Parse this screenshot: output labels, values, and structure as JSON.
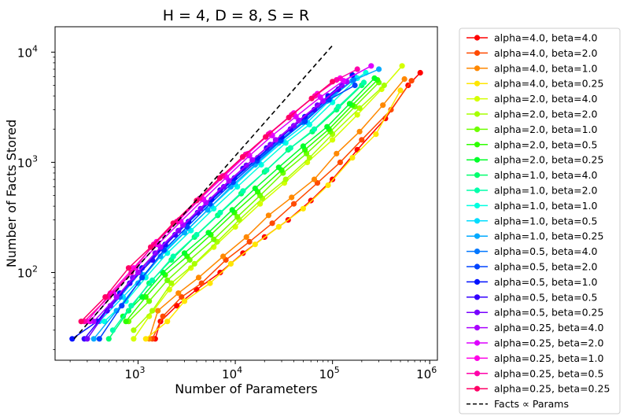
{
  "chart_data": {
    "type": "line",
    "title": "H = 4, D = 8, S = R",
    "xlabel": "Number of Parameters",
    "ylabel": "Number of Facts Stored",
    "xscale": "log",
    "yscale": "log",
    "xlim": [
      140,
      1200000
    ],
    "ylim": [
      16,
      17000
    ],
    "x_ticks": [
      {
        "value": 1000,
        "base": "10",
        "exp": "3"
      },
      {
        "value": 10000,
        "base": "10",
        "exp": "4"
      },
      {
        "value": 100000,
        "base": "10",
        "exp": "5"
      },
      {
        "value": 1000000,
        "base": "10",
        "exp": "6"
      }
    ],
    "y_ticks": [
      {
        "value": 100,
        "base": "10",
        "exp": "2"
      },
      {
        "value": 1000,
        "base": "10",
        "exp": "3"
      },
      {
        "value": 10000,
        "base": "10",
        "exp": "4"
      }
    ],
    "legend_position": "outside-right",
    "reference_line": {
      "name": "Facts ∝ Params",
      "color": "#000000",
      "style": "dashed",
      "x": [
        220,
        100000
      ],
      "y": [
        25,
        11500
      ]
    },
    "series": [
      {
        "name": "alpha=4.0, beta=4.0",
        "color": "#ff0000",
        "x": [
          1500,
          1700,
          2500,
          4000,
          7000,
          12000,
          20000,
          35000,
          60000,
          100000,
          180000,
          350000,
          600000,
          800000
        ],
        "y": [
          25,
          36,
          50,
          70,
          100,
          150,
          210,
          300,
          450,
          700,
          1300,
          2500,
          5000,
          6500
        ]
      },
      {
        "name": "alpha=4.0, beta=2.0",
        "color": "#ff4a00",
        "x": [
          1400,
          1800,
          2800,
          4500,
          8000,
          14000,
          24000,
          40000,
          70000,
          120000,
          200000,
          400000,
          650000
        ],
        "y": [
          25,
          40,
          60,
          80,
          130,
          190,
          280,
          420,
          650,
          1000,
          1600,
          3000,
          5500
        ]
      },
      {
        "name": "alpha=4.0, beta=1.0",
        "color": "#ff8800",
        "x": [
          1300,
          1600,
          2600,
          4200,
          7500,
          13000,
          22000,
          38000,
          65000,
          110000,
          190000,
          330000,
          550000
        ],
        "y": [
          25,
          45,
          65,
          90,
          140,
          210,
          330,
          480,
          700,
          1200,
          1900,
          3300,
          5700
        ]
      },
      {
        "name": "alpha=4.0, beta=0.25",
        "color": "#ffe600",
        "x": [
          1200,
          2000,
          3000,
          5500,
          9000,
          16000,
          28000,
          50000,
          90000,
          160000,
          280000,
          500000
        ],
        "y": [
          25,
          36,
          55,
          80,
          120,
          180,
          260,
          380,
          620,
          1100,
          1800,
          4500
        ]
      },
      {
        "name": "alpha=2.0, beta=4.0",
        "color": "#d4ff00",
        "x": [
          900,
          1300,
          2100,
          3500,
          6000,
          10000,
          18000,
          32000,
          55000,
          100000,
          180000,
          320000,
          520000
        ],
        "y": [
          25,
          40,
          70,
          110,
          170,
          260,
          420,
          650,
          1000,
          1600,
          2700,
          4600,
          7500
        ]
      },
      {
        "name": "alpha=2.0, beta=2.0",
        "color": "#a6ff00",
        "x": [
          900,
          1400,
          2200,
          3800,
          6500,
          11000,
          19000,
          33000,
          58000,
          100000,
          190000,
          340000
        ],
        "y": [
          30,
          45,
          80,
          120,
          190,
          300,
          470,
          700,
          1100,
          1800,
          3100,
          5000
        ]
      },
      {
        "name": "alpha=2.0, beta=1.0",
        "color": "#6eff00",
        "x": [
          800,
          1300,
          2000,
          3400,
          6000,
          10500,
          18000,
          31000,
          54000,
          95000,
          170000,
          300000
        ],
        "y": [
          36,
          55,
          85,
          130,
          200,
          320,
          500,
          800,
          1200,
          1900,
          3200,
          5300
        ]
      },
      {
        "name": "alpha=2.0, beta=0.5",
        "color": "#2eff00",
        "x": [
          750,
          1200,
          1900,
          3200,
          5600,
          9800,
          17000,
          30000,
          52000,
          92000,
          160000,
          290000
        ],
        "y": [
          36,
          60,
          95,
          140,
          220,
          350,
          540,
          850,
          1300,
          2000,
          3300,
          5600
        ]
      },
      {
        "name": "alpha=2.0, beta=0.25",
        "color": "#00ff2a",
        "x": [
          700,
          1100,
          1800,
          3000,
          5300,
          9300,
          16000,
          28000,
          50000,
          88000,
          150000,
          270000
        ],
        "y": [
          40,
          60,
          100,
          150,
          230,
          370,
          580,
          900,
          1400,
          2100,
          3400,
          5800
        ]
      },
      {
        "name": "alpha=1.0, beta=4.0",
        "color": "#00ff6e",
        "x": [
          500,
          800,
          1300,
          2200,
          3800,
          6600,
          11500,
          20000,
          35000,
          62000,
          110000,
          200000
        ],
        "y": [
          25,
          45,
          80,
          130,
          210,
          330,
          520,
          820,
          1300,
          1900,
          3000,
          5000
        ]
      },
      {
        "name": "alpha=1.0, beta=2.0",
        "color": "#00ffaa",
        "x": [
          550,
          850,
          1400,
          2300,
          4000,
          7000,
          12000,
          21000,
          37000,
          65000,
          115000,
          210000
        ],
        "y": [
          30,
          50,
          85,
          140,
          220,
          350,
          550,
          850,
          1350,
          2000,
          3200,
          5300
        ]
      },
      {
        "name": "alpha=1.0, beta=1.0",
        "color": "#00ffe0",
        "x": [
          450,
          750,
          1200,
          2000,
          3500,
          6000,
          10500,
          18500,
          33000,
          58000,
          100000,
          180000,
          220000
        ],
        "y": [
          36,
          55,
          90,
          150,
          240,
          380,
          600,
          950,
          1500,
          2200,
          3500,
          5800,
          6500
        ]
      },
      {
        "name": "alpha=1.0, beta=0.5",
        "color": "#00ddff",
        "x": [
          400,
          700,
          1150,
          1900,
          3300,
          5700,
          10000,
          17500,
          31000,
          55000,
          95000,
          170000
        ],
        "y": [
          36,
          60,
          95,
          160,
          250,
          400,
          630,
          1000,
          1550,
          2300,
          3700,
          6000
        ]
      },
      {
        "name": "alpha=1.0, beta=0.25",
        "color": "#00aaff",
        "x": [
          350,
          600,
          1000,
          1700,
          3000,
          5200,
          9000,
          16000,
          28000,
          50000,
          88000,
          160000,
          300000
        ],
        "y": [
          25,
          45,
          80,
          140,
          230,
          370,
          600,
          950,
          1500,
          2300,
          3600,
          5500,
          7000
        ]
      },
      {
        "name": "alpha=0.5, beta=4.0",
        "color": "#0077ff",
        "x": [
          380,
          650,
          1050,
          1800,
          3100,
          5400,
          9300,
          16500,
          29000,
          51000,
          90000,
          165000
        ],
        "y": [
          36,
          60,
          100,
          170,
          270,
          430,
          680,
          1050,
          1600,
          2400,
          3800,
          5600
        ]
      },
      {
        "name": "alpha=0.5, beta=2.0",
        "color": "#0044ff",
        "x": [
          400,
          680,
          1100,
          1850,
          3200,
          5500,
          9500,
          16800,
          29500,
          52000,
          92000,
          170000
        ],
        "y": [
          25,
          50,
          90,
          160,
          260,
          420,
          660,
          1030,
          1580,
          2350,
          3700,
          5000
        ]
      },
      {
        "name": "alpha=0.5, beta=1.0",
        "color": "#0011ff",
        "x": [
          210,
          380,
          650,
          1100,
          1900,
          3300,
          5700,
          9800,
          17000,
          30000,
          52000,
          90000,
          160000
        ],
        "y": [
          25,
          36,
          65,
          110,
          180,
          290,
          460,
          720,
          1100,
          1700,
          2600,
          4000,
          6200
        ]
      },
      {
        "name": "alpha=0.5, beta=0.5",
        "color": "#3300ff",
        "x": [
          280,
          480,
          820,
          1400,
          2400,
          4100,
          7000,
          12000,
          21000,
          37000,
          65000,
          115000
        ],
        "y": [
          25,
          45,
          80,
          130,
          220,
          350,
          560,
          880,
          1350,
          2000,
          3000,
          4600
        ]
      },
      {
        "name": "alpha=0.5, beta=0.25",
        "color": "#7700ff",
        "x": [
          300,
          520,
          880,
          1500,
          2600,
          4400,
          7600,
          13000,
          23000,
          40000,
          70000,
          125000
        ],
        "y": [
          25,
          50,
          90,
          150,
          240,
          380,
          600,
          940,
          1450,
          2150,
          3300,
          5000
        ]
      },
      {
        "name": "alpha=0.25, beta=4.0",
        "color": "#aa00ff",
        "x": [
          350,
          600,
          1000,
          1700,
          2900,
          5000,
          8600,
          15000,
          26000,
          45000,
          80000,
          140000
        ],
        "y": [
          36,
          60,
          100,
          170,
          270,
          430,
          680,
          1050,
          1600,
          2400,
          3600,
          5400
        ]
      },
      {
        "name": "alpha=0.25, beta=2.0",
        "color": "#dd00ff",
        "x": [
          320,
          560,
          950,
          1600,
          2750,
          4700,
          8100,
          14000,
          24000,
          42000,
          75000,
          130000,
          250000
        ],
        "y": [
          36,
          65,
          110,
          180,
          290,
          460,
          730,
          1150,
          1750,
          2600,
          3900,
          5500,
          7500
        ]
      },
      {
        "name": "alpha=0.25, beta=1.0",
        "color": "#ff00e6",
        "x": [
          300,
          520,
          900,
          1550,
          2650,
          4500,
          7800,
          13500,
          23000,
          40000,
          70000,
          120000
        ],
        "y": [
          36,
          65,
          110,
          190,
          300,
          480,
          760,
          1200,
          1850,
          2800,
          4200,
          5800
        ]
      },
      {
        "name": "alpha=0.25, beta=0.5",
        "color": "#ff00aa",
        "x": [
          280,
          500,
          850,
          1450,
          2500,
          4300,
          7400,
          12800,
          22000,
          38000,
          66000,
          110000,
          180000
        ],
        "y": [
          36,
          60,
          100,
          180,
          290,
          470,
          750,
          1180,
          1800,
          2700,
          4000,
          5600,
          7000
        ]
      },
      {
        "name": "alpha=0.25, beta=0.25",
        "color": "#ff0066",
        "x": [
          260,
          460,
          800,
          1350,
          2300,
          4000,
          6900,
          11900,
          20500,
          35500,
          61000,
          100000
        ],
        "y": [
          36,
          60,
          110,
          170,
          280,
          450,
          720,
          1120,
          1700,
          2550,
          3800,
          5400
        ]
      }
    ]
  }
}
